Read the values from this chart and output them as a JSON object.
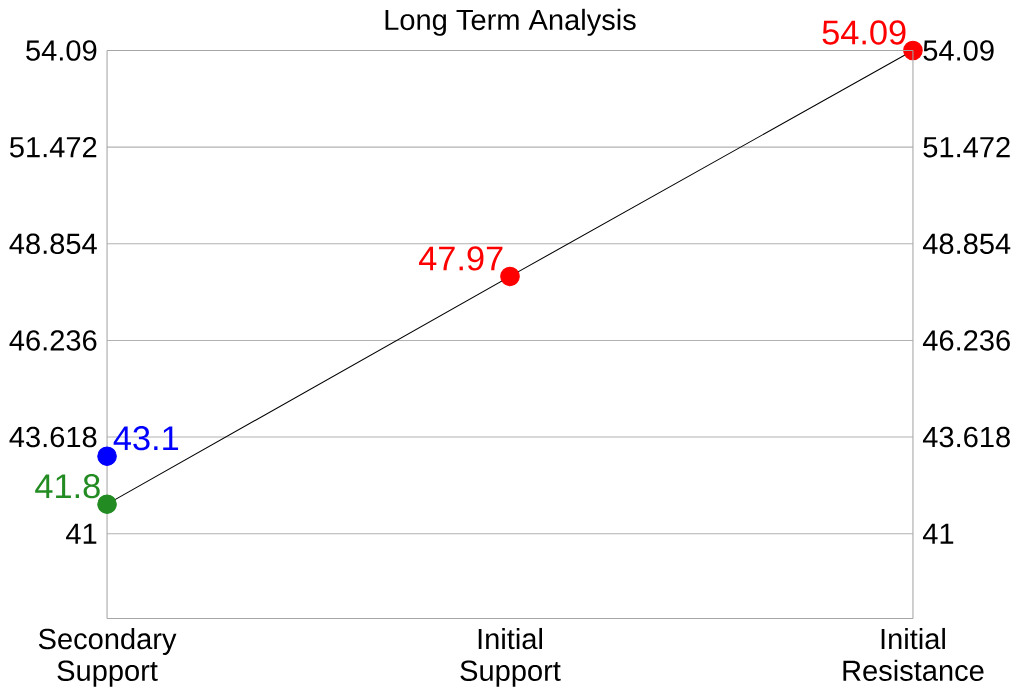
{
  "chart_data": {
    "type": "line",
    "title": "Long Term Analysis",
    "categories": [
      "Secondary Support",
      "Initial Support",
      "Initial Resistance"
    ],
    "ylim": [
      38.7,
      54.09
    ],
    "yticks": [
      41,
      43.618,
      46.236,
      48.854,
      51.472,
      54.09
    ],
    "y2lim": [
      38.7,
      54.09
    ],
    "y2ticks": [
      41,
      43.618,
      46.236,
      48.854,
      51.472,
      54.09
    ],
    "grid": "y",
    "marker": "circle",
    "data_labels": true,
    "series": [
      {
        "color": "#000000",
        "colors": [
          "#228b22",
          "#ff0000",
          "#ff0000"
        ],
        "values": [
          41.8,
          47.97,
          54.09
        ]
      },
      {
        "type": "scatter",
        "color": "#0000ff",
        "values": [
          43.1,
          null,
          null
        ]
      }
    ]
  }
}
